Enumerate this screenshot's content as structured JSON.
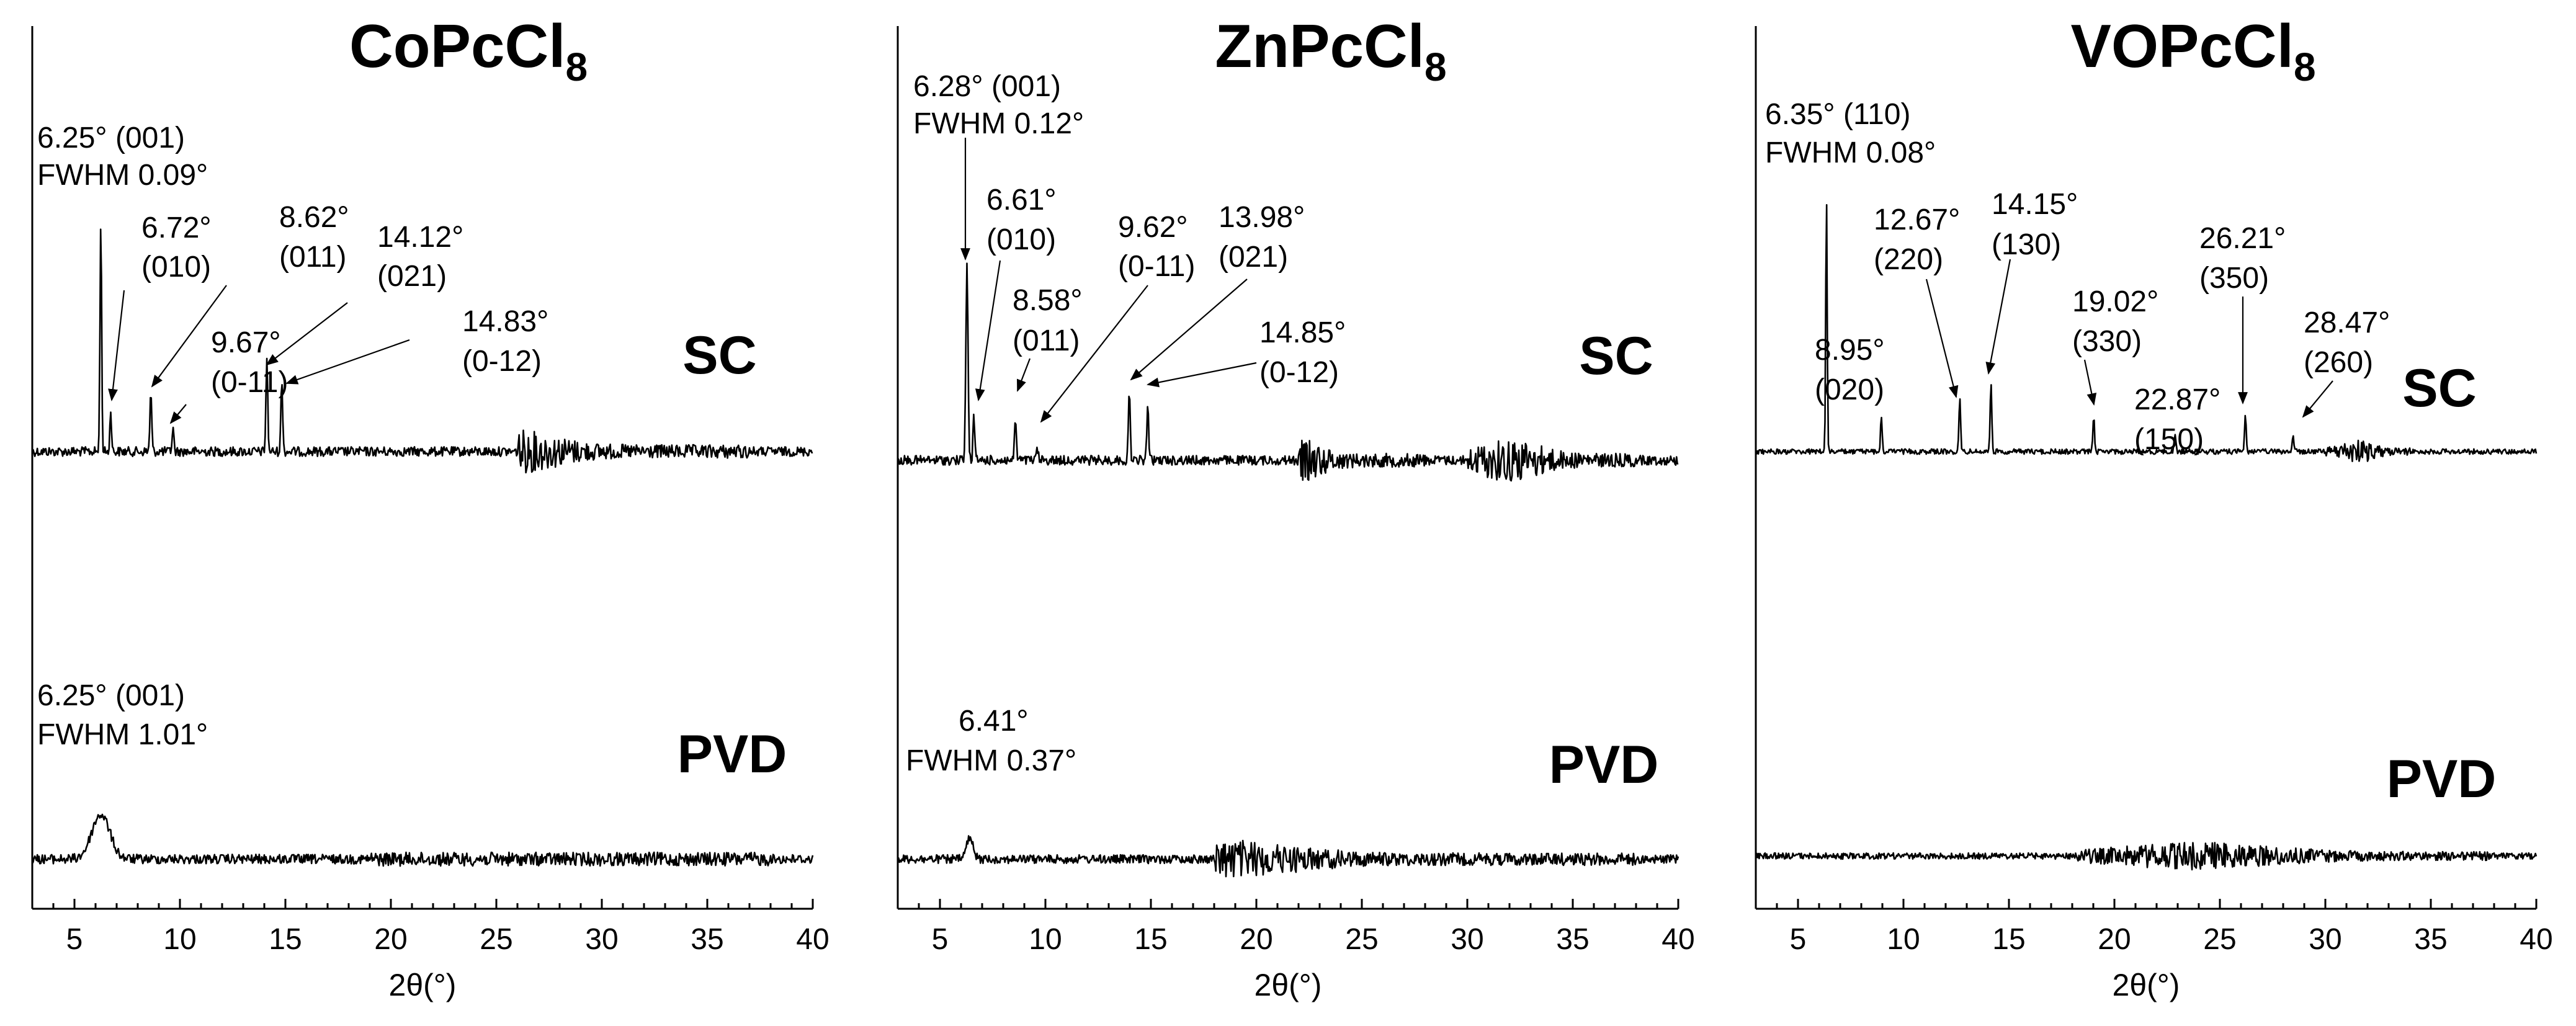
{
  "chart_data": [
    {
      "type": "line",
      "title": "CoPcCl",
      "title_subscript": "8",
      "xlabel": "2θ(°)",
      "ylabel": "",
      "xlim": [
        3,
        40
      ],
      "xticks": [
        5,
        10,
        15,
        20,
        25,
        30,
        35,
        40
      ],
      "series": [
        {
          "name": "SC",
          "peaks": [
            {
              "x": 6.25,
              "height": 1.0,
              "width": 0.09,
              "label": [
                "6.25° (001)",
                "FWHM 0.09°"
              ]
            },
            {
              "x": 6.72,
              "height": 0.18,
              "width": 0.09,
              "label": [
                "6.72°",
                "(010)"
              ]
            },
            {
              "x": 8.62,
              "height": 0.25,
              "width": 0.1,
              "label": [
                "8.62°",
                "(011)"
              ]
            },
            {
              "x": 9.67,
              "height": 0.1,
              "width": 0.1,
              "label": [
                "9.67°",
                "(0-11)"
              ]
            },
            {
              "x": 14.12,
              "height": 0.4,
              "width": 0.1,
              "label": [
                "14.12°",
                "(021)"
              ]
            },
            {
              "x": 14.83,
              "height": 0.3,
              "width": 0.1,
              "label": [
                "14.83°",
                "(0-12)"
              ]
            }
          ]
        },
        {
          "name": "PVD",
          "peaks": [
            {
              "x": 6.25,
              "height": 0.45,
              "width": 1.01,
              "label": [
                "6.25° (001)",
                "FWHM 1.01°"
              ]
            }
          ]
        }
      ]
    },
    {
      "type": "line",
      "title": "ZnPcCl",
      "title_subscript": "8",
      "xlabel": "2θ(°)",
      "ylabel": "",
      "xlim": [
        3,
        40
      ],
      "xticks": [
        5,
        10,
        15,
        20,
        25,
        30,
        35,
        40
      ],
      "series": [
        {
          "name": "SC",
          "peaks": [
            {
              "x": 6.28,
              "height": 1.0,
              "width": 0.12,
              "label": [
                "6.28° (001)",
                "FWHM 0.12°"
              ]
            },
            {
              "x": 6.61,
              "height": 0.22,
              "width": 0.1,
              "label": [
                "6.61°",
                "(010)"
              ]
            },
            {
              "x": 8.58,
              "height": 0.22,
              "width": 0.1,
              "label": [
                "8.58°",
                "(011)"
              ]
            },
            {
              "x": 9.62,
              "height": 0.06,
              "width": 0.1,
              "label": [
                "9.62°",
                "(0-11)"
              ]
            },
            {
              "x": 13.98,
              "height": 0.35,
              "width": 0.1,
              "label": [
                "13.98°",
                "(021)"
              ]
            },
            {
              "x": 14.85,
              "height": 0.3,
              "width": 0.1,
              "label": [
                "14.85°",
                "(0-12)"
              ]
            }
          ]
        },
        {
          "name": "PVD",
          "peaks": [
            {
              "x": 6.41,
              "height": 0.3,
              "width": 0.37,
              "label": [
                "6.41°",
                "FWHM 0.37°"
              ]
            }
          ]
        }
      ]
    },
    {
      "type": "line",
      "title": "VOPcCl",
      "title_subscript": "8",
      "xlabel": "2θ(°)",
      "ylabel": "",
      "xlim": [
        3,
        40
      ],
      "xticks": [
        5,
        10,
        15,
        20,
        25,
        30,
        35,
        40
      ],
      "series": [
        {
          "name": "SC",
          "peaks": [
            {
              "x": 6.35,
              "height": 1.0,
              "width": 0.08,
              "label": [
                "6.35° (110)",
                "FWHM 0.08°"
              ]
            },
            {
              "x": 8.95,
              "height": 0.13,
              "width": 0.09,
              "label": [
                "8.95°",
                "(020)"
              ]
            },
            {
              "x": 12.67,
              "height": 0.2,
              "width": 0.09,
              "label": [
                "12.67°",
                "(220)"
              ]
            },
            {
              "x": 14.15,
              "height": 0.27,
              "width": 0.09,
              "label": [
                "14.15°",
                "(130)"
              ]
            },
            {
              "x": 19.02,
              "height": 0.14,
              "width": 0.09,
              "label": [
                "19.02°",
                "(330)"
              ]
            },
            {
              "x": 22.87,
              "height": 0.07,
              "width": 0.09,
              "label": [
                "22.87°",
                "(150)"
              ]
            },
            {
              "x": 26.21,
              "height": 0.14,
              "width": 0.09,
              "label": [
                "26.21°",
                "(350)"
              ]
            },
            {
              "x": 28.47,
              "height": 0.07,
              "width": 0.09,
              "label": [
                "28.47°",
                "(260)"
              ]
            }
          ]
        },
        {
          "name": "PVD",
          "peaks": []
        }
      ]
    }
  ]
}
